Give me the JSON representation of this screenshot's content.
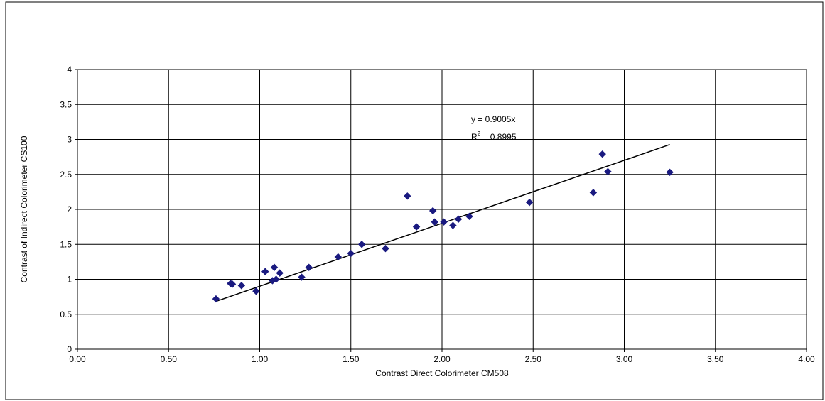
{
  "chart_data": {
    "type": "scatter",
    "xlabel": "Contrast Direct Colorimeter CM508",
    "ylabel": "Contrast of Indirect Colorimeter CS100",
    "xlim": [
      0,
      4
    ],
    "ylim": [
      0,
      4
    ],
    "x_ticks": [
      "0.00",
      "0.50",
      "1.00",
      "1.50",
      "2.00",
      "2.50",
      "3.00",
      "3.50",
      "4.00"
    ],
    "y_ticks": [
      "0",
      "0.5",
      "1",
      "1.5",
      "2",
      "2.5",
      "3",
      "3.5",
      "4"
    ],
    "grid": true,
    "marker_color": "#1a1a80",
    "trendline": {
      "slope": 0.9005,
      "x_range": [
        0.76,
        3.25
      ],
      "equation": "y = 0.9005x",
      "r2_label": "R",
      "r2_sup": "2",
      "r2_value": " = 0.8995"
    },
    "points": [
      {
        "x": 0.76,
        "y": 0.72
      },
      {
        "x": 0.84,
        "y": 0.94
      },
      {
        "x": 0.85,
        "y": 0.93
      },
      {
        "x": 0.9,
        "y": 0.91
      },
      {
        "x": 0.98,
        "y": 0.83
      },
      {
        "x": 1.03,
        "y": 1.11
      },
      {
        "x": 1.07,
        "y": 0.98
      },
      {
        "x": 1.08,
        "y": 1.17
      },
      {
        "x": 1.09,
        "y": 1.0
      },
      {
        "x": 1.11,
        "y": 1.09
      },
      {
        "x": 1.23,
        "y": 1.03
      },
      {
        "x": 1.27,
        "y": 1.17
      },
      {
        "x": 1.43,
        "y": 1.32
      },
      {
        "x": 1.5,
        "y": 1.37
      },
      {
        "x": 1.56,
        "y": 1.5
      },
      {
        "x": 1.69,
        "y": 1.44
      },
      {
        "x": 1.81,
        "y": 2.19
      },
      {
        "x": 1.86,
        "y": 1.75
      },
      {
        "x": 1.95,
        "y": 1.98
      },
      {
        "x": 1.96,
        "y": 1.82
      },
      {
        "x": 2.01,
        "y": 1.82
      },
      {
        "x": 2.06,
        "y": 1.77
      },
      {
        "x": 2.09,
        "y": 1.86
      },
      {
        "x": 2.15,
        "y": 1.9
      },
      {
        "x": 2.48,
        "y": 2.1
      },
      {
        "x": 2.83,
        "y": 2.24
      },
      {
        "x": 2.88,
        "y": 2.79
      },
      {
        "x": 2.91,
        "y": 2.54
      },
      {
        "x": 3.25,
        "y": 2.53
      }
    ]
  }
}
